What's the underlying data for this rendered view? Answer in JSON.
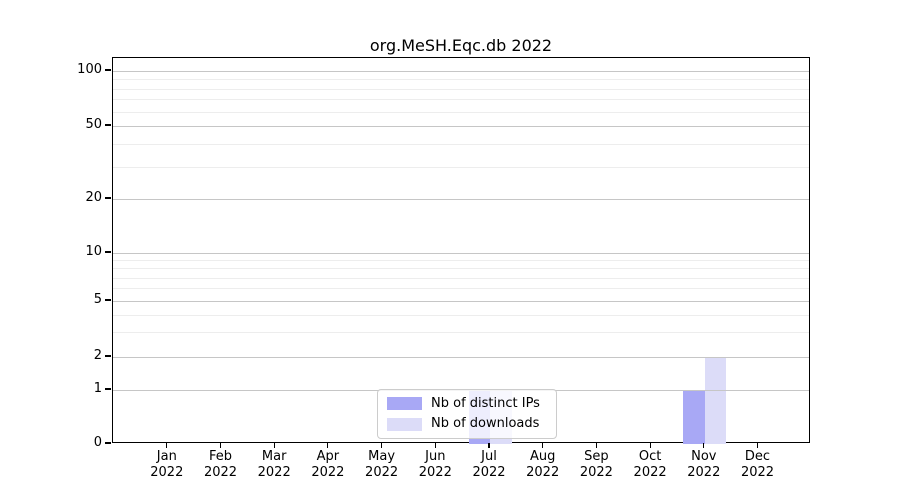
{
  "chart_data": {
    "type": "bar",
    "title": "org.MeSH.Eqc.db 2022",
    "categories": [
      "Jan 2022",
      "Feb 2022",
      "Mar 2022",
      "Apr 2022",
      "May 2022",
      "Jun 2022",
      "Jul 2022",
      "Aug 2022",
      "Sep 2022",
      "Oct 2022",
      "Nov 2022",
      "Dec 2022"
    ],
    "series": [
      {
        "name": "Nb of distinct IPs",
        "color": "#a8a8f5",
        "values": [
          0,
          0,
          0,
          0,
          0,
          0,
          1,
          0,
          0,
          0,
          1,
          0
        ]
      },
      {
        "name": "Nb of downloads",
        "color": "#dcdcf8",
        "values": [
          0,
          0,
          0,
          0,
          0,
          0,
          1,
          0,
          0,
          0,
          2,
          0
        ]
      }
    ],
    "xlabel": "",
    "ylabel": "",
    "ylim": [
      0,
      100
    ],
    "y_scale": "log-like with linear 0-1 segment",
    "y_ticks": [
      0,
      1,
      2,
      5,
      10,
      20,
      50,
      100
    ],
    "y_minor_ticks": [
      3,
      4,
      6,
      7,
      8,
      9,
      30,
      40,
      60,
      70,
      80,
      90
    ],
    "grid": "horizontal, major and minor",
    "legend_position": "bottom-center inside plot",
    "colors": {
      "major_grid": "#c6c6c6",
      "minor_grid": "#ededed",
      "axis": "#000000",
      "background": "#ffffff"
    }
  }
}
